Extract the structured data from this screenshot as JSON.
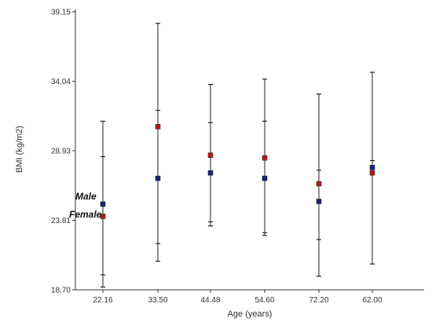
{
  "chart_data": {
    "type": "scatter",
    "xlabel": "Age (years)",
    "ylabel": "BMI (kg/m2)",
    "ylim": [
      18.7,
      39.15
    ],
    "y_ticks": [
      "18.70",
      "23.81",
      "28.93",
      "34.04",
      "39.15"
    ],
    "categories": [
      "22.16",
      "33.50",
      "44.48",
      "54.60",
      "72.20",
      "62.00"
    ],
    "grid": false,
    "series": [
      {
        "name": "Male",
        "color": "#1a237e",
        "values": [
          25.0,
          26.9,
          27.3,
          26.9,
          25.2,
          27.7
        ],
        "err_low": [
          19.8,
          22.1,
          23.4,
          22.9,
          19.7,
          20.6
        ],
        "err_high": [
          28.5,
          31.9,
          31.0,
          31.1,
          27.5,
          28.2
        ]
      },
      {
        "name": "Female",
        "color": "#b71c1c",
        "values": [
          24.1,
          30.7,
          28.6,
          28.4,
          26.5,
          27.3
        ],
        "err_low": [
          18.9,
          20.8,
          23.7,
          22.7,
          22.4,
          27.2
        ],
        "err_high": [
          31.1,
          38.3,
          33.8,
          34.2,
          33.1,
          34.7
        ]
      }
    ]
  }
}
